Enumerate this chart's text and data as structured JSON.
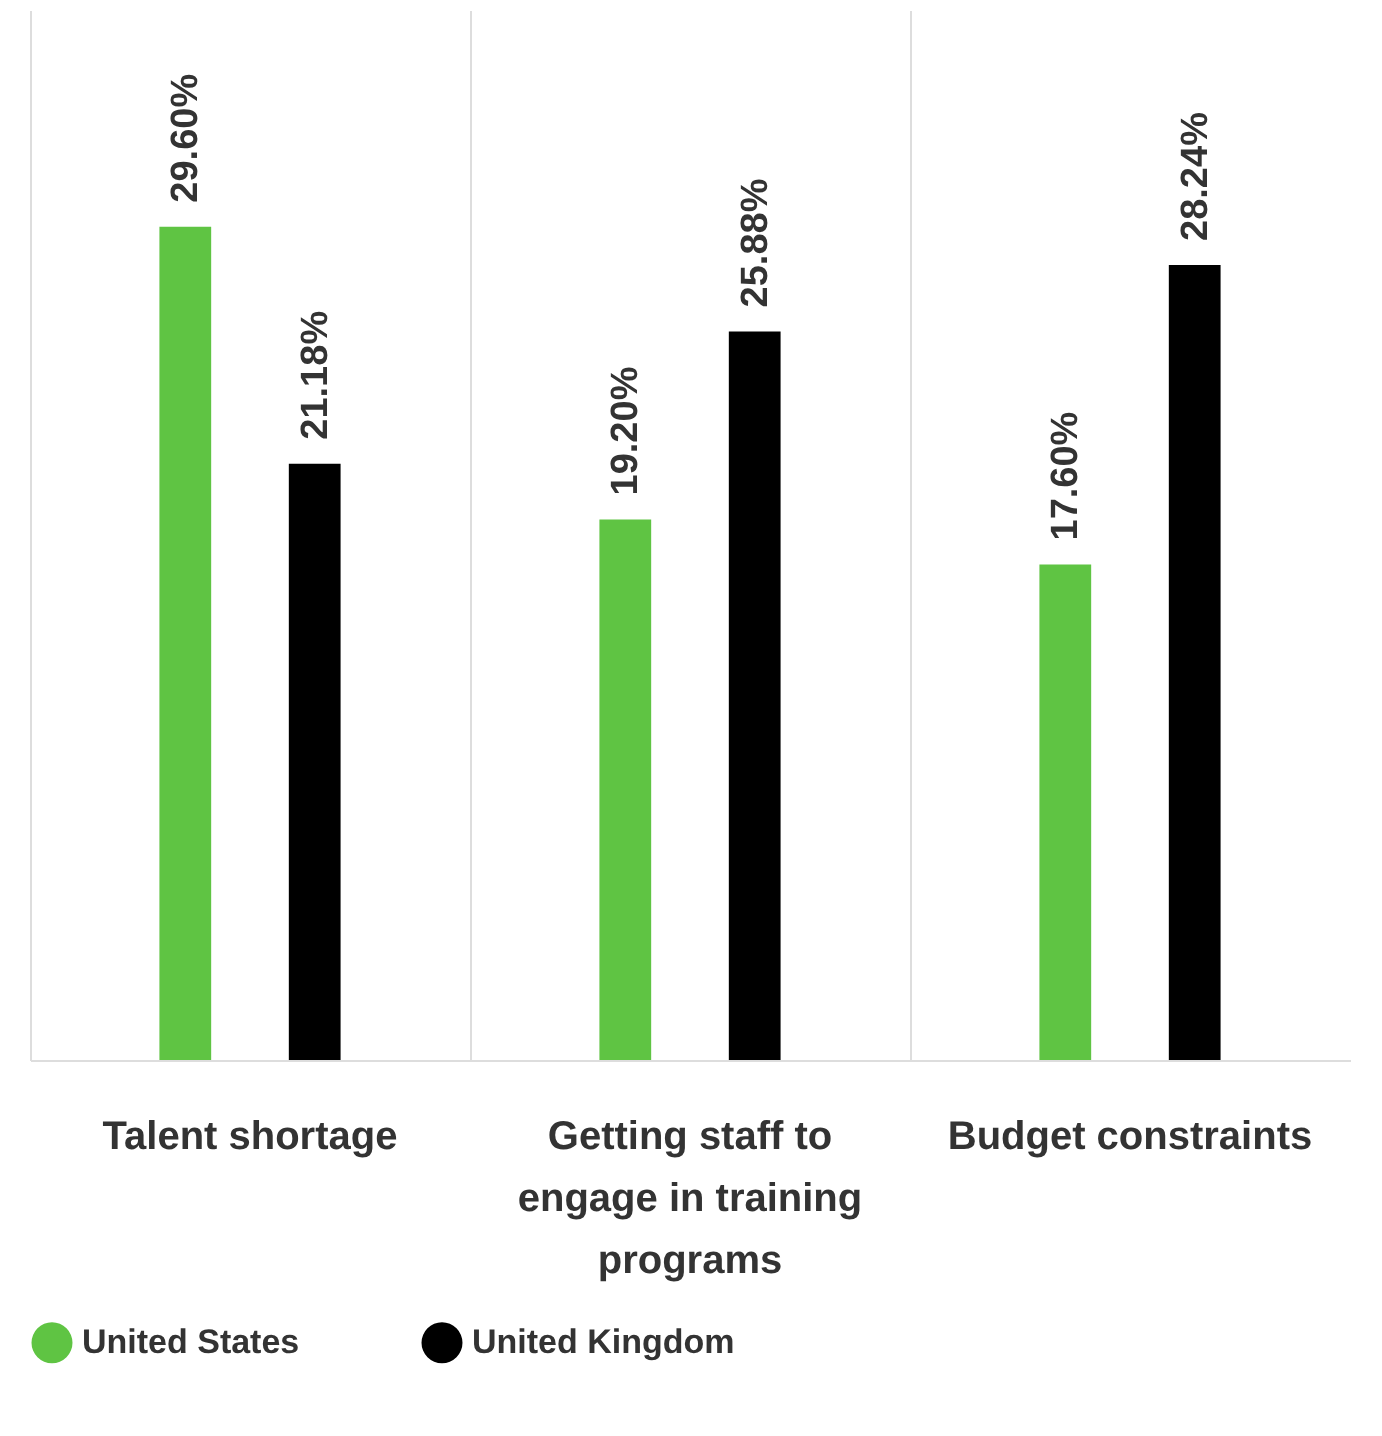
{
  "chart_data": {
    "type": "bar",
    "categories": [
      "Talent shortage",
      "Getting staff to engage in training programs",
      "Budget constraints"
    ],
    "series": [
      {
        "name": "United States",
        "color": "#5fc443",
        "values": [
          29.6,
          19.2,
          17.6
        ],
        "value_labels": [
          "29.60%",
          "19.20%",
          "17.60%"
        ]
      },
      {
        "name": "United Kingdom",
        "color": "#000000",
        "values": [
          21.18,
          25.88,
          28.24
        ],
        "value_labels": [
          "21.18%",
          "25.88%",
          "28.24%"
        ]
      }
    ],
    "grid": "x",
    "legend": "bottom",
    "tick_labels": "x"
  }
}
